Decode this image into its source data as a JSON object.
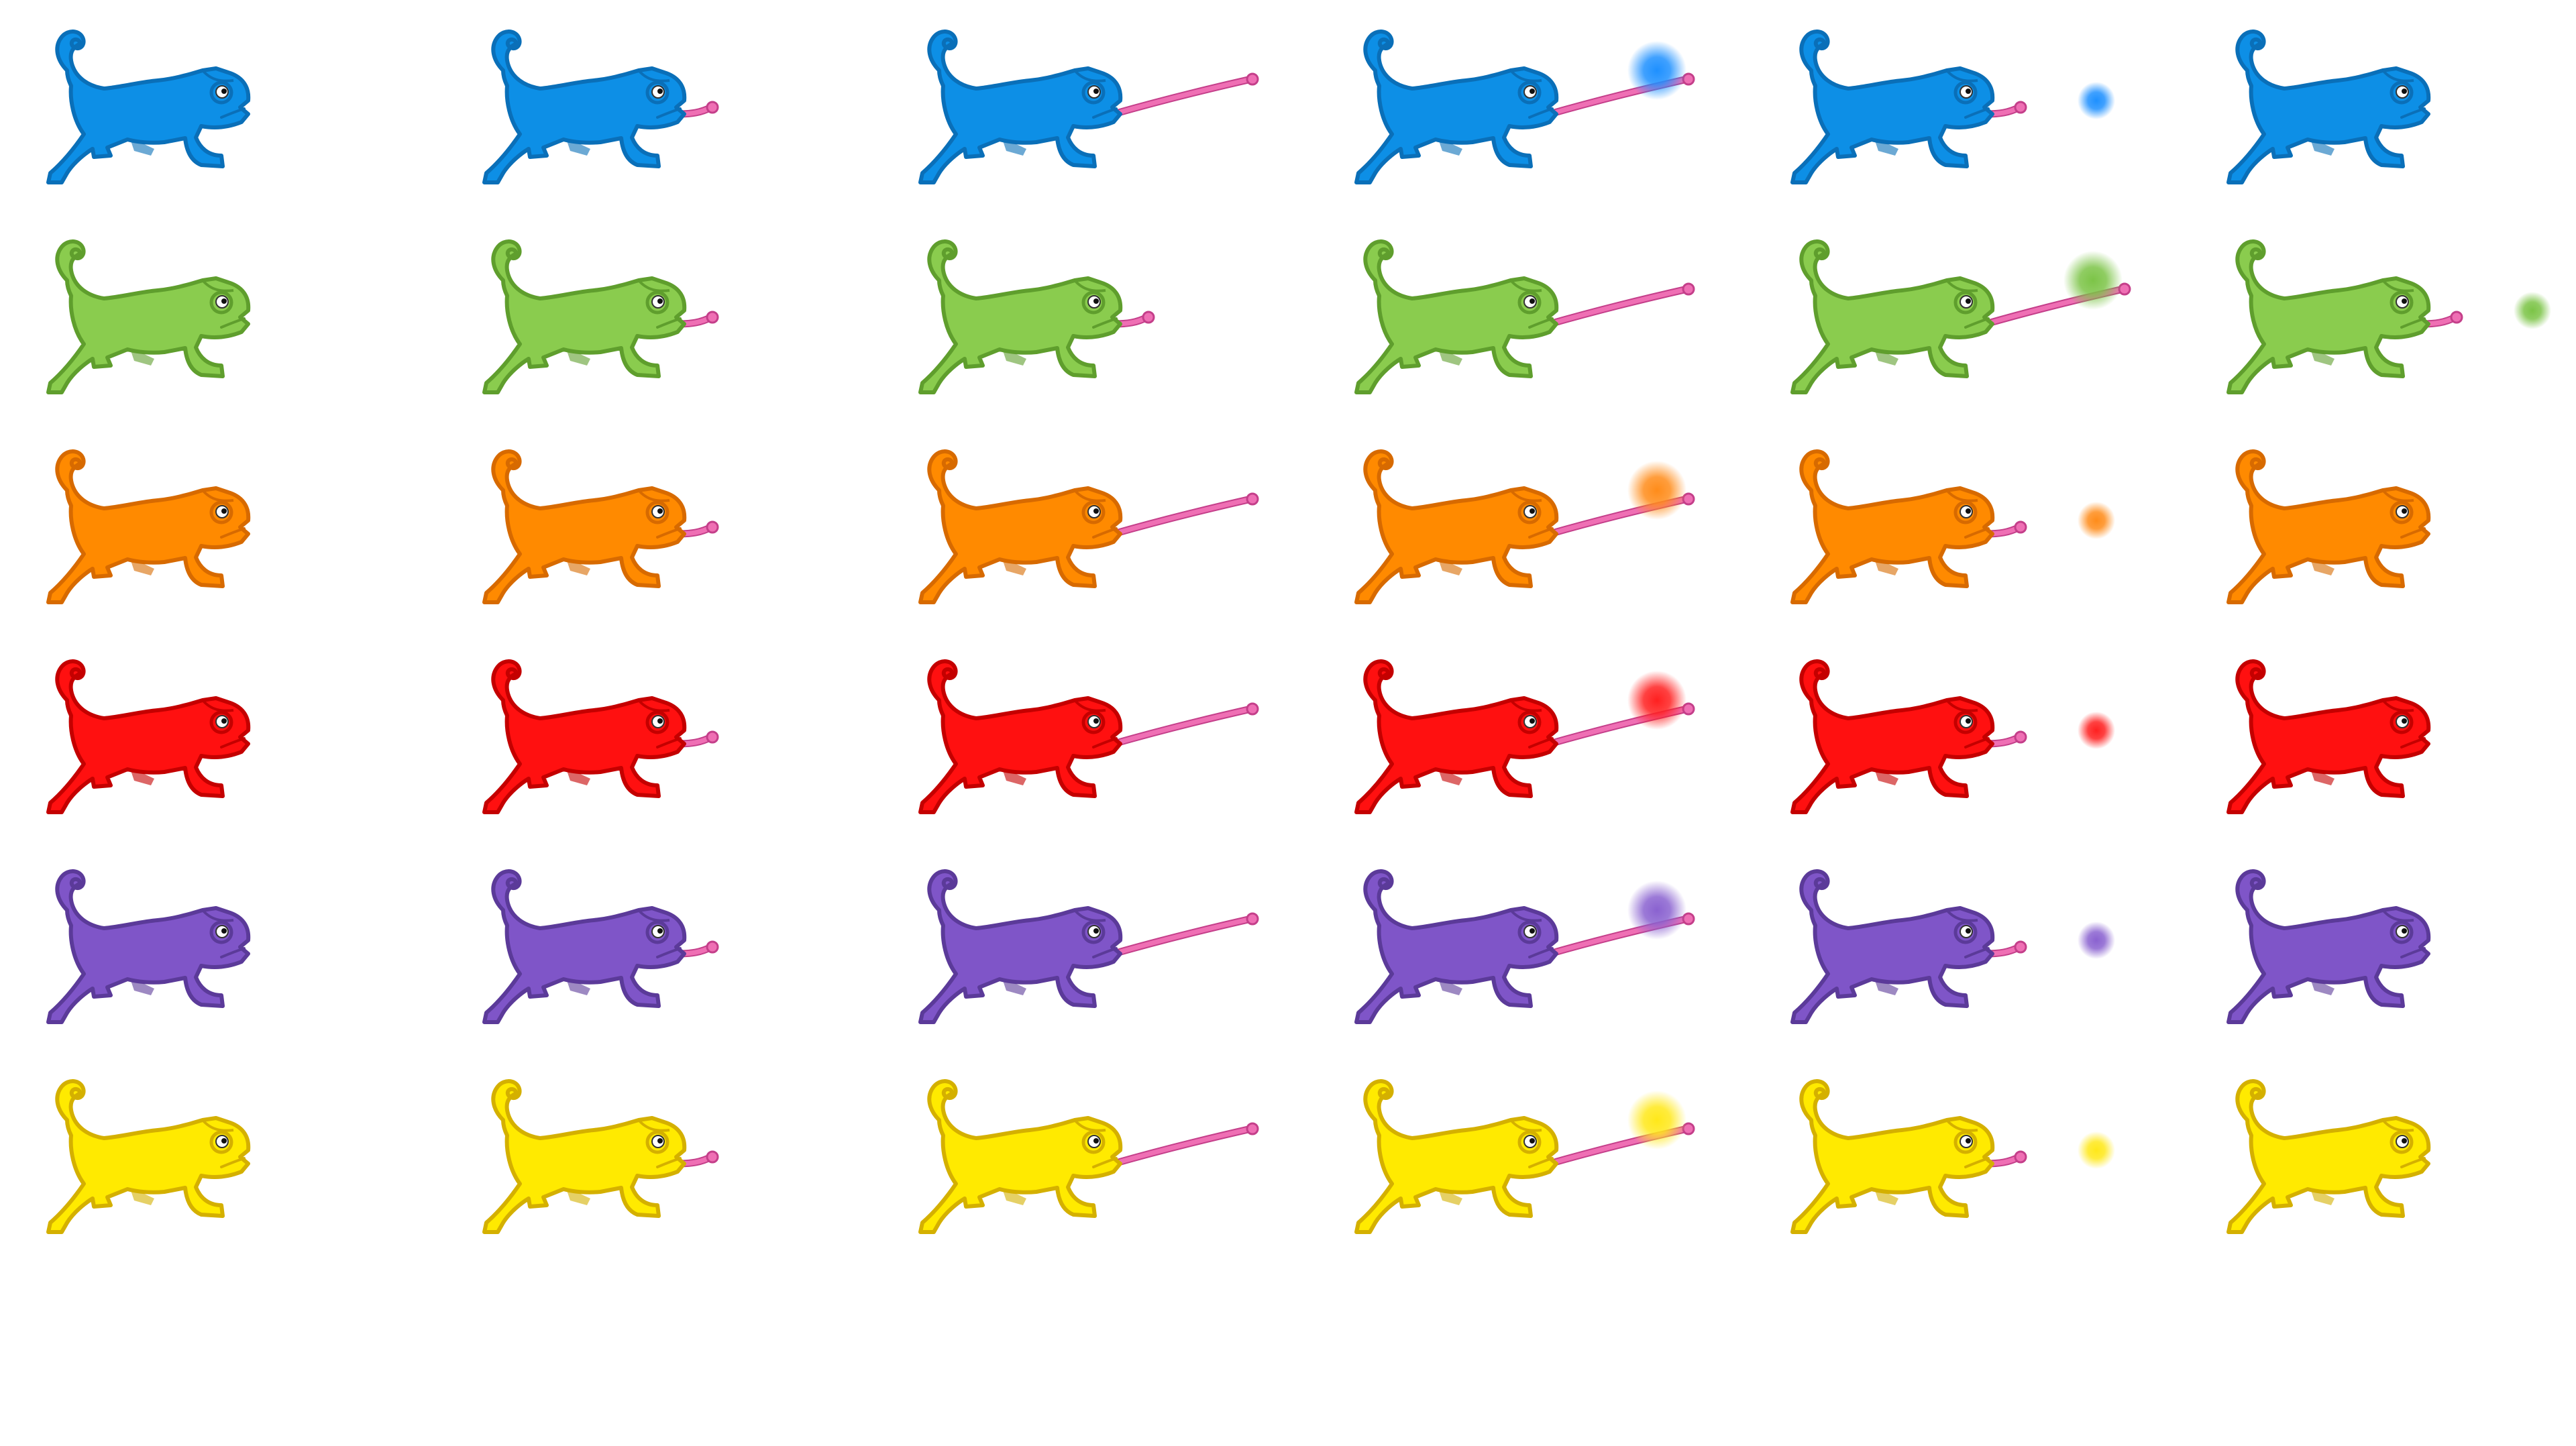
{
  "sprite_sheet": {
    "character": "chameleon",
    "color_variants": [
      {
        "name": "blue",
        "fill": "#0d8fe6",
        "stroke": "#0a6fb8",
        "orb": "#1e90ff"
      },
      {
        "name": "green",
        "fill": "#8acc4e",
        "stroke": "#5f9e2d",
        "orb": "#7cc447"
      },
      {
        "name": "orange",
        "fill": "#ff8a00",
        "stroke": "#d76a00",
        "orb": "#ff8c1a"
      },
      {
        "name": "red",
        "fill": "#ff1010",
        "stroke": "#c40000",
        "orb": "#ff2020"
      },
      {
        "name": "purple",
        "fill": "#7f55c8",
        "stroke": "#5b3a99",
        "orb": "#8a62d0"
      },
      {
        "name": "yellow",
        "fill": "#ffea00",
        "stroke": "#d4b000",
        "orb": "#ffe81a"
      }
    ],
    "tongue_color": "#ef6fb4",
    "tongue_outline": "#c43f8a",
    "frames": [
      {
        "name": "idle",
        "tongue": "none",
        "orb": "none"
      },
      {
        "name": "tongue-peek",
        "tongue": "short",
        "orb": "none"
      },
      {
        "name": "tongue-extend",
        "tongue": "long",
        "orb": "none"
      },
      {
        "name": "tongue-catch",
        "tongue": "long",
        "orb": "large"
      },
      {
        "name": "tongue-retract",
        "tongue": "short",
        "orb": "small"
      },
      {
        "name": "idle-after",
        "tongue": "none",
        "orb": "none"
      }
    ],
    "frame_overrides": [
      {
        "row": 1,
        "col": 2,
        "tongue": "short",
        "orb": "none"
      },
      {
        "row": 1,
        "col": 3,
        "tongue": "long",
        "orb": "none"
      },
      {
        "row": 1,
        "col": 4,
        "tongue": "long",
        "orb": "large"
      },
      {
        "row": 1,
        "col": 5,
        "tongue": "short",
        "orb": "small"
      }
    ]
  }
}
